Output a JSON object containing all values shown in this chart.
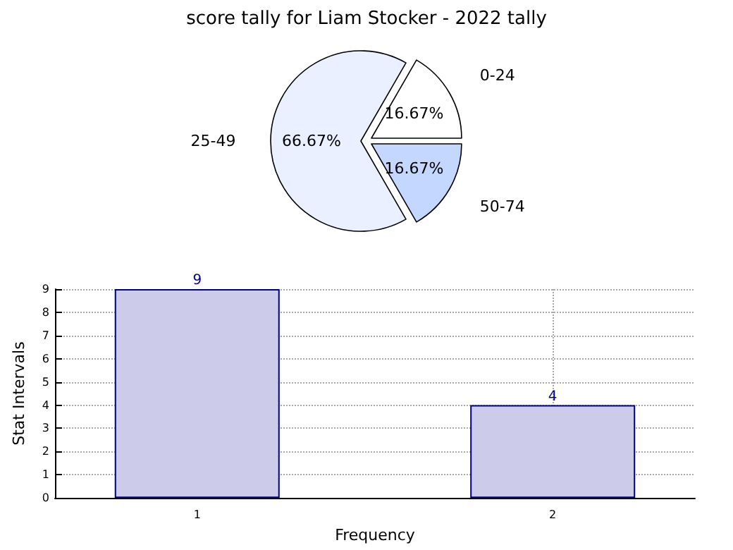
{
  "chart_data": [
    {
      "type": "pie",
      "title": "score tally for Liam Stocker - 2022 tally",
      "categories": [
        "0-24",
        "25-49",
        "50-74"
      ],
      "values": [
        16.67,
        66.67,
        16.67
      ],
      "colors": [
        "#ffffff",
        "#eaf0ff",
        "#c4d8ff"
      ],
      "value_labels": [
        "16.67%",
        "66.67%",
        "16.67%"
      ],
      "legend": false
    },
    {
      "type": "bar",
      "x": [
        1,
        2
      ],
      "values": [
        9,
        4
      ],
      "color": "#ccccea",
      "xlabel": "Frequency",
      "ylabel": "Stat Intervals",
      "xlim": [
        0.6,
        2.4
      ],
      "xticks": [
        1,
        2
      ],
      "ylim": [
        0,
        9
      ],
      "yticks": [
        0,
        1,
        2,
        3,
        4,
        5,
        6,
        7,
        8,
        9
      ],
      "grid": true,
      "data_labels": true,
      "legend": false
    }
  ]
}
